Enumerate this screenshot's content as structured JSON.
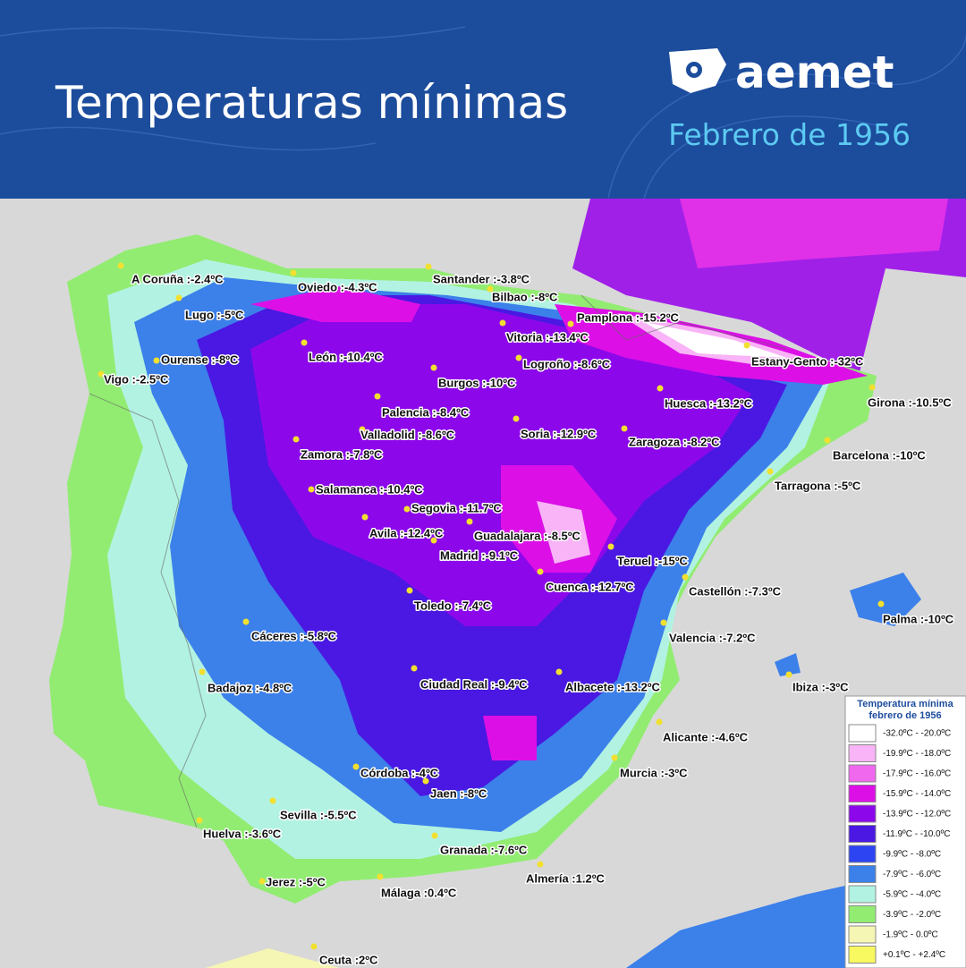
{
  "header": {
    "title": "Temperaturas mínimas",
    "brand": "aemet",
    "subtitle": "Febrero de 1956"
  },
  "cities": [
    {
      "label": "A Coruña :-2.4ºC"
    },
    {
      "label": "Oviedo :-4.3ºC"
    },
    {
      "label": "Santander :-3.8ºC"
    },
    {
      "label": "Bilbao :-8ºC"
    },
    {
      "label": "Lugo :-5ºC"
    },
    {
      "label": "Pamplona :-15.2ºC"
    },
    {
      "label": "Vitoria :-13.4ºC"
    },
    {
      "label": "León :-10.4ºC"
    },
    {
      "label": "Ourense :-8ºC"
    },
    {
      "label": "Logroño :-8.6ºC"
    },
    {
      "label": "Estany-Gento :-32ºC"
    },
    {
      "label": "Vigo :-2.5ºC"
    },
    {
      "label": "Burgos :-10ºC"
    },
    {
      "label": "Huesca :-13.2ºC"
    },
    {
      "label": "Girona :-10.5ºC"
    },
    {
      "label": "Palencia :-8.4ºC"
    },
    {
      "label": "Soria :-12.9ºC"
    },
    {
      "label": "Valladolid :-8.6ºC"
    },
    {
      "label": "Zaragoza :-8.2ºC"
    },
    {
      "label": "Zamora :-7.8ºC"
    },
    {
      "label": "Barcelona :-10ºC"
    },
    {
      "label": "Tarragona :-5ºC"
    },
    {
      "label": "Salamanca :-10.4ºC"
    },
    {
      "label": "Segovia :-11.7ºC"
    },
    {
      "label": "Avila :-12.4ºC"
    },
    {
      "label": "Guadalajara :-8.5ºC"
    },
    {
      "label": "Madrid :-9.1ºC"
    },
    {
      "label": "Teruel :-15ºC"
    },
    {
      "label": "Cuenca :-12.7ºC"
    },
    {
      "label": "Castellón :-7.3ºC"
    },
    {
      "label": "Toledo :-7.4ºC"
    },
    {
      "label": "Palma :-10ºC"
    },
    {
      "label": "Cáceres :-5.8ºC"
    },
    {
      "label": "Valencia :-7.2ºC"
    },
    {
      "label": "Badajoz :-4.8ºC"
    },
    {
      "label": "Ciudad Real :-9.4ºC"
    },
    {
      "label": "Albacete :-13.2ºC"
    },
    {
      "label": "Ibiza :-3ºC"
    },
    {
      "label": "Alicante :-4.6ºC"
    },
    {
      "label": "Murcia :-3ºC"
    },
    {
      "label": "Córdoba :-4ºC"
    },
    {
      "label": "Jaen :-8ºC"
    },
    {
      "label": "Sevilla :-5.5ºC"
    },
    {
      "label": "Huelva :-3.6ºC"
    },
    {
      "label": "Granada :-7.6ºC"
    },
    {
      "label": "Almería :1.2ºC"
    },
    {
      "label": "Jerez :-5ºC"
    },
    {
      "label": "Málaga :0.4ºC"
    },
    {
      "label": "Ceuta :2ºC"
    }
  ],
  "legend": {
    "title": [
      "Temperatura mínima",
      "febrero de 1956"
    ],
    "items": [
      {
        "label": "-32.0ºC - -20.0ºC",
        "color": "#ffffff"
      },
      {
        "label": "-19.9ºC - -18.0ºC",
        "color": "#f8b4f6"
      },
      {
        "label": "-17.9ºC - -16.0ºC",
        "color": "#f068ee"
      },
      {
        "label": "-15.9ºC - -14.0ºC",
        "color": "#dc10e6"
      },
      {
        "label": "-13.9ºC - -12.0ºC",
        "color": "#8c08ea"
      },
      {
        "label": "-11.9ºC - -10.0ºC",
        "color": "#4a18e2"
      },
      {
        "label": "-9.9ºC - -8.0ºC",
        "color": "#2c44f2"
      },
      {
        "label": "-7.9ºC - -6.0ºC",
        "color": "#3c80ea"
      },
      {
        "label": "-5.9ºC - -4.0ºC",
        "color": "#b2f2e2"
      },
      {
        "label": "-3.9ºC - -2.0ºC",
        "color": "#92ec72"
      },
      {
        "label": "-1.9ºC - 0.0ºC",
        "color": "#f6f6b4"
      },
      {
        "label": "+0.1ºC - +2.4ºC",
        "color": "#f8f860"
      }
    ]
  }
}
